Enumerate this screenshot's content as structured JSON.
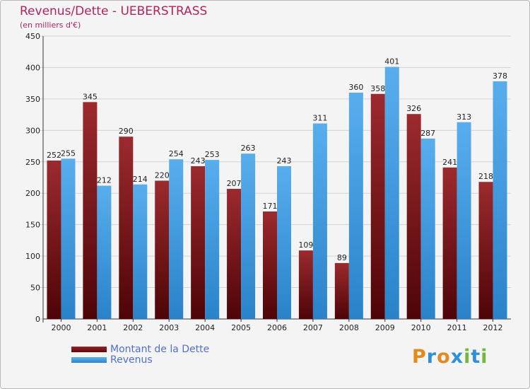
{
  "header": {
    "title": "Revenus/Dette - UEBERSTRASS",
    "subtitle": "(en milliers d'€)"
  },
  "logo": {
    "text": "Proxiti"
  },
  "colors": {
    "dette": "#7b1216",
    "revenus": "#3f9fe3",
    "title": "#b0245a",
    "legend_text": "#4f6fd6"
  },
  "chart_data": {
    "type": "bar",
    "categories": [
      "2000",
      "2001",
      "2002",
      "2003",
      "2004",
      "2005",
      "2006",
      "2007",
      "2008",
      "2009",
      "2010",
      "2011",
      "2012"
    ],
    "series": [
      {
        "name": "Montant de la Dette",
        "values": [
          252,
          345,
          290,
          220,
          243,
          207,
          171,
          109,
          89,
          358,
          326,
          241,
          218
        ]
      },
      {
        "name": "Revenus",
        "values": [
          255,
          212,
          214,
          254,
          253,
          263,
          243,
          311,
          360,
          401,
          287,
          313,
          378
        ]
      }
    ],
    "yticks": [
      0,
      50,
      100,
      150,
      200,
      250,
      300,
      350,
      400,
      450
    ],
    "ylim": [
      0,
      450
    ],
    "grid": true,
    "legend": "bottom-left"
  }
}
